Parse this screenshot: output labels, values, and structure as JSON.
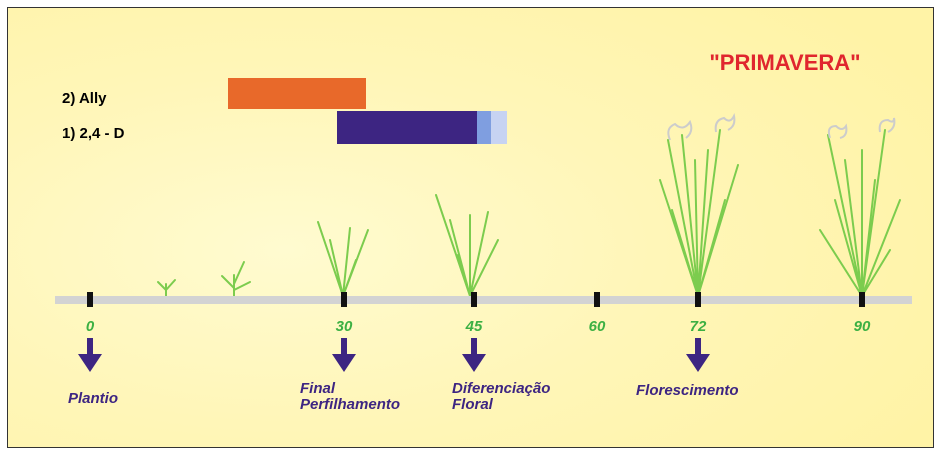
{
  "title": "\"PRIMAVERA\"",
  "applications": [
    {
      "label": "2) Ally"
    },
    {
      "label": "1) 2,4 - D"
    }
  ],
  "timeline": {
    "ticks": [
      0,
      30,
      45,
      60,
      72,
      90
    ]
  },
  "stages": [
    {
      "lines": [
        "Plantio"
      ]
    },
    {
      "lines": [
        "Final",
        "Perfilhamento"
      ]
    },
    {
      "lines": [
        "Diferenciação",
        "Floral"
      ]
    },
    {
      "lines": [
        "Florescimento"
      ]
    }
  ]
}
